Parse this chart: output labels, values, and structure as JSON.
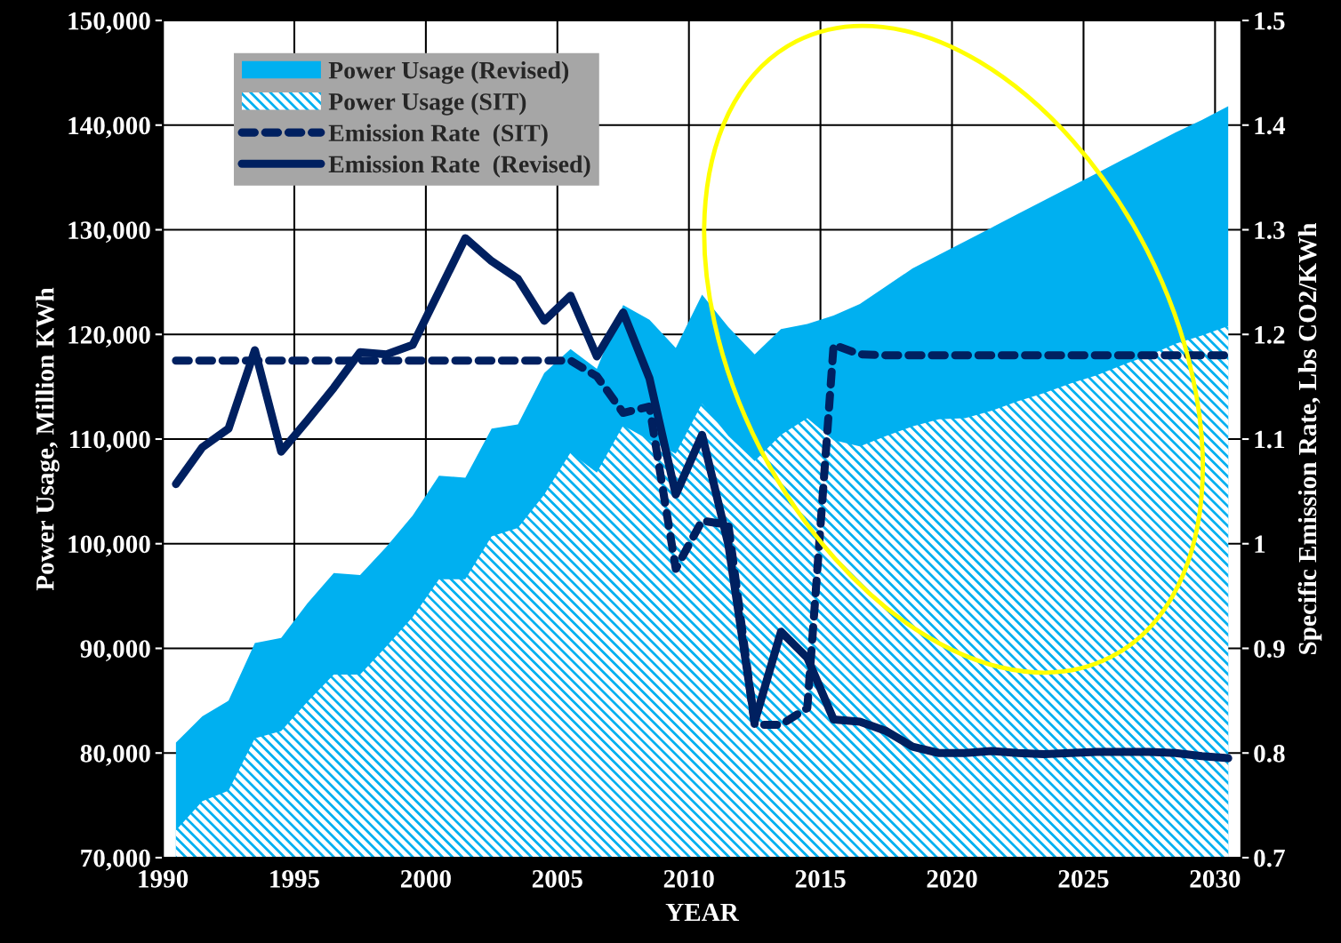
{
  "chart_data": {
    "type": "area",
    "xlabel": "YEAR",
    "ylabel": "Power Usage, Million KWh",
    "y2label": "Specific Emission Rate, Lbs CO2/KWh",
    "x": [
      1990.5,
      1991.5,
      1992.5,
      1993.5,
      1994.5,
      1995.5,
      1996.5,
      1997.5,
      1998.5,
      1999.5,
      2000.5,
      2001.5,
      2002.5,
      2003.5,
      2004.5,
      2005.5,
      2006.5,
      2007.5,
      2008.5,
      2009.5,
      2010.5,
      2011.5,
      2012.5,
      2013.5,
      2014.5,
      2015.5,
      2016.5,
      2017.5,
      2018.5,
      2019.5,
      2020.5,
      2021.5,
      2022.5,
      2023.5,
      2024.5,
      2025.5,
      2026.5,
      2027.5,
      2028.5,
      2029.5,
      2030.5
    ],
    "series": [
      {
        "name": "Power Usage (Revised)",
        "color": "#00b0f0",
        "values": [
          81000,
          83500,
          85000,
          90500,
          91000,
          94300,
          97200,
          97000,
          99700,
          102700,
          106500,
          106300,
          111000,
          111400,
          116300,
          118600,
          116700,
          122800,
          121400,
          118700,
          123800,
          120700,
          118100,
          120500,
          121000,
          121800,
          122900,
          124600,
          126300,
          127600,
          128900,
          130200,
          131500,
          132800,
          134100,
          135400,
          136700,
          138000,
          139300,
          140500,
          141800
        ]
      },
      {
        "name": "Power Usage (SIT)",
        "color": "#00b0f0",
        "values": [
          72600,
          75400,
          76400,
          81400,
          82100,
          84900,
          87500,
          87500,
          90200,
          93000,
          96600,
          96600,
          100700,
          101500,
          104700,
          108700,
          106800,
          111300,
          109900,
          108600,
          113400,
          110300,
          107900,
          110400,
          112000,
          109900,
          109300,
          110300,
          111200,
          111900,
          112000,
          112700,
          113600,
          114400,
          115300,
          116100,
          117100,
          118000,
          119100,
          119900,
          120800
        ]
      },
      {
        "name": "Emission Rate  (SIT)",
        "type": "line",
        "axis": "y2",
        "line_style": "dashed",
        "color": "#002060",
        "values": [
          1.175,
          1.175,
          1.175,
          1.175,
          1.175,
          1.175,
          1.175,
          1.175,
          1.175,
          1.175,
          1.175,
          1.175,
          1.175,
          1.175,
          1.175,
          1.175,
          1.16,
          1.125,
          1.131,
          0.976,
          1.022,
          1.018,
          0.827,
          0.827,
          0.843,
          1.19,
          1.181,
          1.18,
          1.18,
          1.18,
          1.18,
          1.18,
          1.18,
          1.18,
          1.18,
          1.18,
          1.18,
          1.18,
          1.18,
          1.18,
          1.18
        ]
      },
      {
        "name": "Emission Rate  (Revised)",
        "type": "line",
        "axis": "y2",
        "line_style": "solid",
        "color": "#002060",
        "values": [
          1.057,
          1.092,
          1.11,
          1.185,
          1.088,
          1.118,
          1.149,
          1.183,
          1.181,
          1.19,
          1.241,
          1.292,
          1.27,
          1.253,
          1.213,
          1.237,
          1.179,
          1.221,
          1.158,
          1.047,
          1.104,
          0.999,
          0.83,
          0.916,
          0.891,
          0.832,
          0.83,
          0.821,
          0.806,
          0.8,
          0.8,
          0.802,
          0.8,
          0.799,
          0.8,
          0.801,
          0.801,
          0.801,
          0.8,
          0.797,
          0.795
        ]
      }
    ],
    "xlim": [
      1990,
      2031
    ],
    "xticks": [
      1990,
      1995,
      2000,
      2005,
      2010,
      2015,
      2020,
      2025,
      2030
    ],
    "ylim": [
      70000,
      150000
    ],
    "yticks": [
      {
        "value": 70000,
        "label": "70,000"
      },
      {
        "value": 80000,
        "label": "80,000"
      },
      {
        "value": 90000,
        "label": "90,000"
      },
      {
        "value": 100000,
        "label": "100,000"
      },
      {
        "value": 110000,
        "label": "110,000"
      },
      {
        "value": 120000,
        "label": "120,000"
      },
      {
        "value": 130000,
        "label": "130,000"
      },
      {
        "value": 140000,
        "label": "140,000"
      },
      {
        "value": 150000,
        "label": "150,000"
      }
    ],
    "y2lim": [
      0.7,
      1.5
    ],
    "y2ticks": [
      0.7,
      0.8,
      0.9,
      1,
      1.1,
      1.2,
      1.3,
      1.4,
      1.5
    ],
    "grid": true,
    "legend": "top left"
  }
}
